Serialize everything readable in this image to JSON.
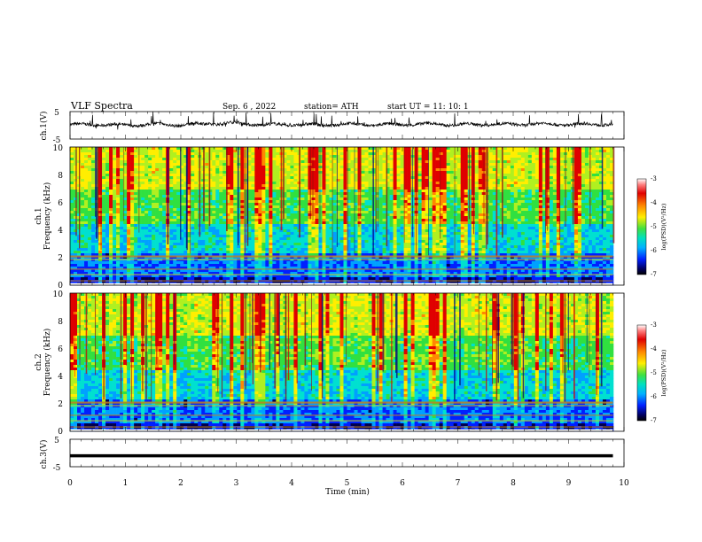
{
  "header": {
    "title": "VLF  Spectra",
    "date": "Sep. 6  , 2022",
    "station": "station= ATH",
    "start": "start  UT  =    11: 10: 1"
  },
  "colors": {
    "waveform": "#000000",
    "spectrogram_background": "#ffffff"
  },
  "chart_data": [
    {
      "type": "line",
      "ylabel": "ch.1(V)",
      "ylim": [
        -5,
        5
      ],
      "yticks": [
        "5",
        "-5"
      ],
      "xlim": [
        0,
        10
      ],
      "x": [
        0.0,
        0.5,
        1.0,
        1.5,
        2.0,
        2.5,
        3.0,
        3.5,
        4.0,
        4.5,
        5.0,
        5.5,
        6.0,
        6.5,
        7.0,
        7.5,
        8.0,
        8.5,
        9.0,
        9.5,
        9.8
      ],
      "y": [
        0.2,
        0.3,
        0.0,
        0.4,
        0.1,
        0.6,
        0.8,
        0.2,
        0.3,
        0.1,
        0.4,
        0.2,
        0.3,
        0.5,
        0.2,
        0.4,
        0.3,
        0.5,
        0.3,
        0.4,
        0.3
      ]
    },
    {
      "type": "heatmap",
      "ylabel": "ch.1\nFrequency  (kHz)",
      "ylim": [
        0,
        10
      ],
      "yticks": [
        "0",
        "2",
        "4",
        "6",
        "8",
        "10"
      ],
      "xlim": [
        0,
        10
      ],
      "colorbar": {
        "label": "log(PSD)(V²/Hz)",
        "range": [
          -7,
          -3
        ],
        "ticks": [
          "-3",
          "-4",
          "-5",
          "-6",
          "-7"
        ]
      }
    },
    {
      "type": "heatmap",
      "ylabel": "ch.2\nFrequency  (kHz)",
      "ylim": [
        0,
        10
      ],
      "yticks": [
        "0",
        "2",
        "4",
        "6",
        "8",
        "10"
      ],
      "xlim": [
        0,
        10
      ],
      "colorbar": {
        "label": "log(PSD)(V²/Hz)",
        "range": [
          -7,
          -3
        ],
        "ticks": [
          "-3",
          "-4",
          "-5",
          "-6",
          "-7"
        ]
      }
    },
    {
      "type": "line",
      "ylabel": "ch.3(V)",
      "ylim": [
        -5,
        5
      ],
      "yticks": [
        "5",
        "-5"
      ],
      "xlim": [
        0,
        10
      ],
      "x": [
        0,
        9.8
      ],
      "y": [
        -1,
        -1
      ]
    }
  ],
  "xaxis": {
    "label": "Time  (min)",
    "ticks": [
      "0",
      "1",
      "2",
      "3",
      "4",
      "5",
      "6",
      "7",
      "8",
      "9",
      "10"
    ]
  }
}
